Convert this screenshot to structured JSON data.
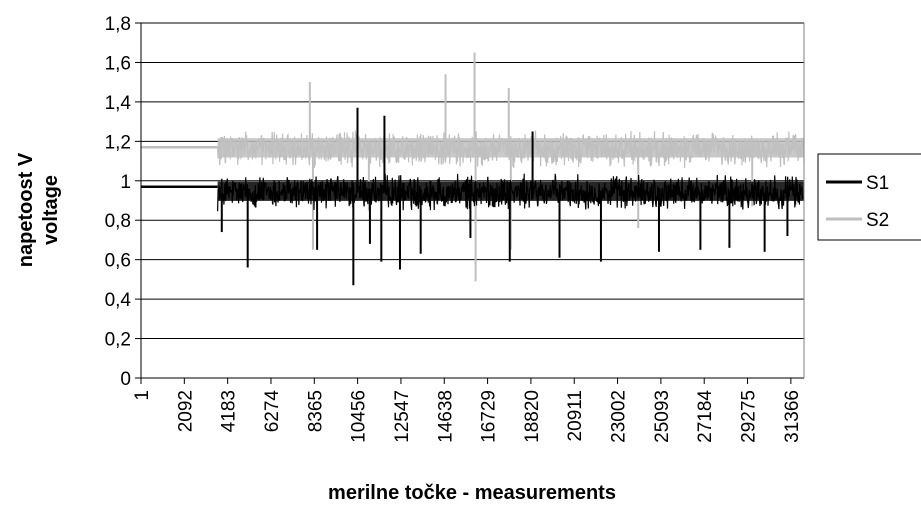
{
  "chart_data": {
    "type": "line",
    "title": "",
    "xlabel": "merilne točke - measurements",
    "ylabel_line1": "napetoost  V",
    "ylabel_line2": "voltage",
    "ylim": [
      0,
      1.8
    ],
    "y_ticks": [
      "0",
      "0,2",
      "0,4",
      "0,6",
      "0,8",
      "1",
      "1,2",
      "1,4",
      "1,6",
      "1,8"
    ],
    "x_range": [
      1,
      32000
    ],
    "x_ticks": [
      "1",
      "2092",
      "4183",
      "6274",
      "8365",
      "10456",
      "12547",
      "14638",
      "16729",
      "18820",
      "20911",
      "23002",
      "25093",
      "27184",
      "29275",
      "31366"
    ],
    "grid": "horizontal",
    "legend_position": "right",
    "series": [
      {
        "name": "S1",
        "color": "#000000",
        "flat_level": 0.97,
        "flat_end": 3700,
        "noise_band": [
          0.8,
          1.08
        ],
        "spikes": [
          {
            "x": 3900,
            "y": 0.74
          },
          {
            "x": 5150,
            "y": 0.56
          },
          {
            "x": 8500,
            "y": 0.65
          },
          {
            "x": 10250,
            "y": 0.47
          },
          {
            "x": 10450,
            "y": 1.37
          },
          {
            "x": 11050,
            "y": 0.68
          },
          {
            "x": 11600,
            "y": 0.59
          },
          {
            "x": 11750,
            "y": 1.33
          },
          {
            "x": 12500,
            "y": 0.55
          },
          {
            "x": 13500,
            "y": 0.63
          },
          {
            "x": 15900,
            "y": 0.71
          },
          {
            "x": 17800,
            "y": 0.59
          },
          {
            "x": 18900,
            "y": 1.25
          },
          {
            "x": 20200,
            "y": 0.61
          },
          {
            "x": 22200,
            "y": 0.59
          },
          {
            "x": 25000,
            "y": 0.64
          },
          {
            "x": 27000,
            "y": 0.65
          },
          {
            "x": 28400,
            "y": 0.66
          },
          {
            "x": 30100,
            "y": 0.64
          },
          {
            "x": 31200,
            "y": 0.72
          }
        ]
      },
      {
        "name": "S2",
        "color": "#bfbfbf",
        "flat_level": 1.17,
        "flat_end": 3700,
        "noise_band": [
          1.02,
          1.3
        ],
        "spikes": [
          {
            "x": 8150,
            "y": 1.5
          },
          {
            "x": 8300,
            "y": 0.65
          },
          {
            "x": 14700,
            "y": 1.54
          },
          {
            "x": 16100,
            "y": 1.65
          },
          {
            "x": 16150,
            "y": 0.49
          },
          {
            "x": 17750,
            "y": 1.47
          },
          {
            "x": 17850,
            "y": 0.65
          },
          {
            "x": 11000,
            "y": 0.85
          },
          {
            "x": 24000,
            "y": 0.76
          },
          {
            "x": 29500,
            "y": 0.87
          }
        ]
      }
    ]
  }
}
